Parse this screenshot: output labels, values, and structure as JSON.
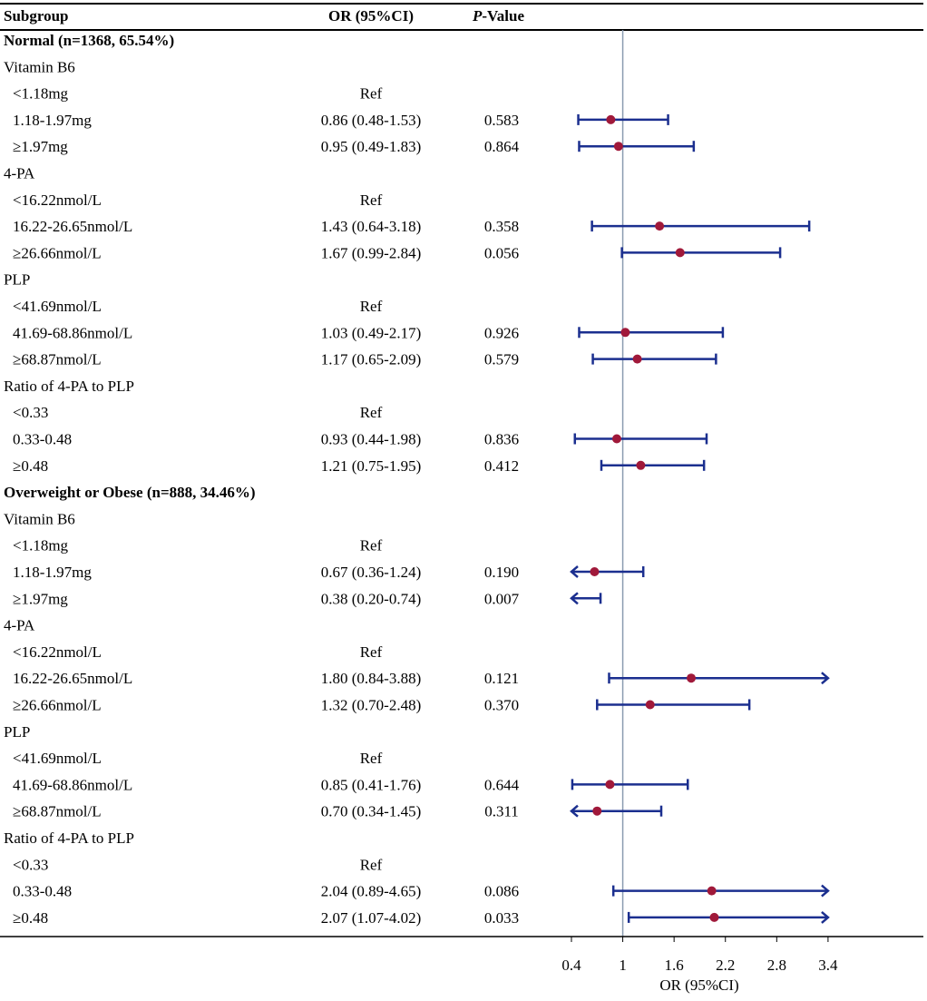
{
  "chart_data": {
    "type": "forest",
    "columns": {
      "subgroup": "Subgroup",
      "or": "OR (95%CI)",
      "p_italic": "P",
      "p_rest": "-Value"
    },
    "xlabel": "OR (95%CI)",
    "x_ticks": [
      "0.4",
      "1",
      "1.6",
      "2.2",
      "2.8",
      "3.4"
    ],
    "x_range": [
      0.4,
      3.4
    ],
    "reference_line": 1,
    "colors": {
      "ci": "#1b2f8f",
      "point": "#a0193a",
      "ref_line": "#8a9bb0",
      "rule": "#000000"
    },
    "rows": [
      {
        "kind": "group",
        "label": "Normal (n=1368, 65.54%)"
      },
      {
        "kind": "category",
        "label": "Vitamin B6"
      },
      {
        "kind": "level",
        "label": "<1.18mg",
        "or_text": "Ref"
      },
      {
        "kind": "level",
        "label": "1.18-1.97mg",
        "or_text": "0.86 (0.48-1.53)",
        "p": "0.583",
        "or": 0.86,
        "lo": 0.48,
        "hi": 1.53
      },
      {
        "kind": "level",
        "label": "≥1.97mg",
        "or_text": "0.95 (0.49-1.83)",
        "p": "0.864",
        "or": 0.95,
        "lo": 0.49,
        "hi": 1.83
      },
      {
        "kind": "category",
        "label": "4-PA"
      },
      {
        "kind": "level",
        "label": "<16.22nmol/L",
        "or_text": "Ref"
      },
      {
        "kind": "level",
        "label": "16.22-26.65nmol/L",
        "or_text": "1.43 (0.64-3.18)",
        "p": "0.358",
        "or": 1.43,
        "lo": 0.64,
        "hi": 3.18
      },
      {
        "kind": "level",
        "label": "≥26.66nmol/L",
        "or_text": "1.67 (0.99-2.84)",
        "p": "0.056",
        "or": 1.67,
        "lo": 0.99,
        "hi": 2.84
      },
      {
        "kind": "category",
        "label": "PLP"
      },
      {
        "kind": "level",
        "label": "<41.69nmol/L",
        "or_text": "Ref"
      },
      {
        "kind": "level",
        "label": "41.69-68.86nmol/L",
        "or_text": "1.03 (0.49-2.17)",
        "p": "0.926",
        "or": 1.03,
        "lo": 0.49,
        "hi": 2.17
      },
      {
        "kind": "level",
        "label": "≥68.87nmol/L",
        "or_text": "1.17 (0.65-2.09)",
        "p": "0.579",
        "or": 1.17,
        "lo": 0.65,
        "hi": 2.09
      },
      {
        "kind": "category",
        "label": "Ratio of 4-PA to PLP"
      },
      {
        "kind": "level",
        "label": "<0.33",
        "or_text": "Ref"
      },
      {
        "kind": "level",
        "label": "0.33-0.48",
        "or_text": "0.93 (0.44-1.98)",
        "p": "0.836",
        "or": 0.93,
        "lo": 0.44,
        "hi": 1.98
      },
      {
        "kind": "level",
        "label": "≥0.48",
        "or_text": "1.21 (0.75-1.95)",
        "p": "0.412",
        "or": 1.21,
        "lo": 0.75,
        "hi": 1.95
      },
      {
        "kind": "group",
        "label": "Overweight or Obese (n=888, 34.46%)"
      },
      {
        "kind": "category",
        "label": "Vitamin B6"
      },
      {
        "kind": "level",
        "label": "<1.18mg",
        "or_text": "Ref"
      },
      {
        "kind": "level",
        "label": "1.18-1.97mg",
        "or_text": "0.67 (0.36-1.24)",
        "p": "0.190",
        "or": 0.67,
        "lo": 0.36,
        "hi": 1.24
      },
      {
        "kind": "level",
        "label": "≥1.97mg",
        "or_text": "0.38 (0.20-0.74)",
        "p": "0.007",
        "or": 0.38,
        "lo": 0.2,
        "hi": 0.74
      },
      {
        "kind": "category",
        "label": "4-PA"
      },
      {
        "kind": "level",
        "label": "<16.22nmol/L",
        "or_text": "Ref"
      },
      {
        "kind": "level",
        "label": "16.22-26.65nmol/L",
        "or_text": "1.80 (0.84-3.88)",
        "p": "0.121",
        "or": 1.8,
        "lo": 0.84,
        "hi": 3.88
      },
      {
        "kind": "level",
        "label": "≥26.66nmol/L",
        "or_text": "1.32 (0.70-2.48)",
        "p": "0.370",
        "or": 1.32,
        "lo": 0.7,
        "hi": 2.48
      },
      {
        "kind": "category",
        "label": "PLP"
      },
      {
        "kind": "level",
        "label": "<41.69nmol/L",
        "or_text": "Ref"
      },
      {
        "kind": "level",
        "label": "41.69-68.86nmol/L",
        "or_text": "0.85 (0.41-1.76)",
        "p": "0.644",
        "or": 0.85,
        "lo": 0.41,
        "hi": 1.76
      },
      {
        "kind": "level",
        "label": "≥68.87nmol/L",
        "or_text": "0.70 (0.34-1.45)",
        "p": "0.311",
        "or": 0.7,
        "lo": 0.34,
        "hi": 1.45
      },
      {
        "kind": "category",
        "label": "Ratio of 4-PA to PLP"
      },
      {
        "kind": "level",
        "label": "<0.33",
        "or_text": "Ref"
      },
      {
        "kind": "level",
        "label": "0.33-0.48",
        "or_text": "2.04 (0.89-4.65)",
        "p": "0.086",
        "or": 2.04,
        "lo": 0.89,
        "hi": 4.65
      },
      {
        "kind": "level",
        "label": "≥0.48",
        "or_text": "2.07 (1.07-4.02)",
        "p": "0.033",
        "or": 2.07,
        "lo": 1.07,
        "hi": 4.02
      }
    ]
  }
}
